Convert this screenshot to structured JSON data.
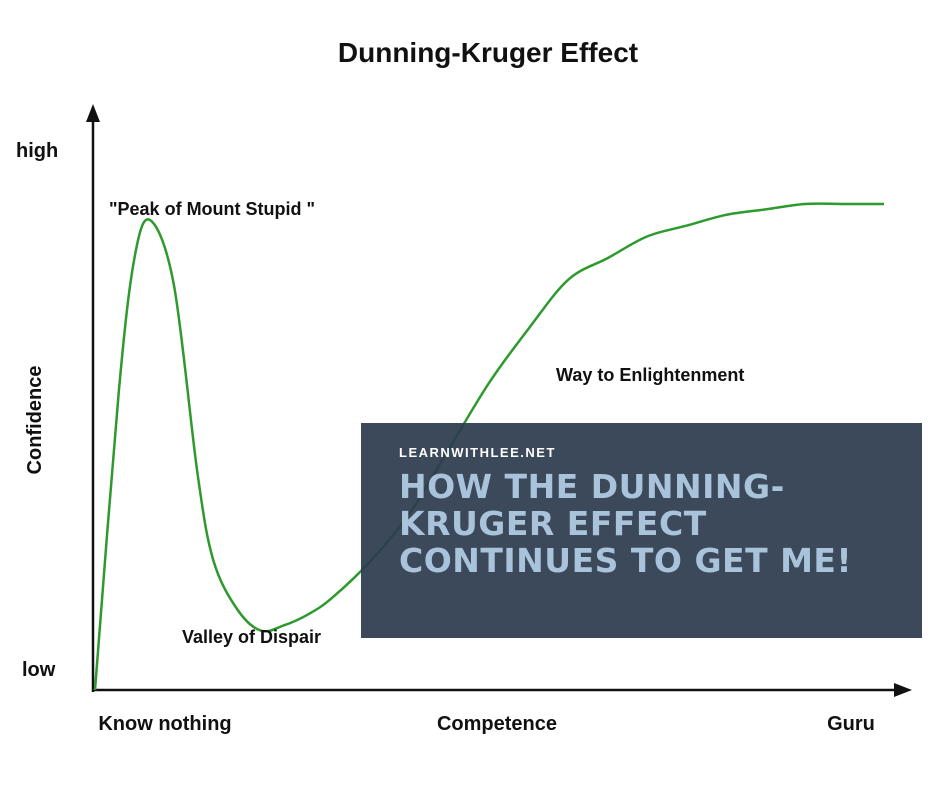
{
  "chart_data": {
    "type": "line",
    "title": "Dunning-Kruger Effect",
    "xlabel": "",
    "ylabel": "Confidence",
    "x_tick_labels": [
      "Know nothing",
      "Competence",
      "Guru"
    ],
    "y_tick_labels": [
      "low",
      "high"
    ],
    "xlim": [
      0,
      100
    ],
    "ylim": [
      0,
      100
    ],
    "grid": false,
    "legend": "none",
    "line_color": "#2e9a2e",
    "series": [
      {
        "x": [
          0,
          3,
          5,
          7,
          10,
          13,
          15,
          18,
          21,
          24,
          27,
          30,
          35,
          40,
          45,
          50,
          55,
          60,
          65,
          70,
          75,
          80,
          85,
          90,
          95,
          100
        ],
        "values": [
          0,
          55,
          80,
          87,
          75,
          40,
          24,
          15,
          11,
          12,
          14,
          17,
          24,
          33,
          45,
          57,
          67,
          76,
          80,
          84,
          86,
          88,
          89,
          90,
          90,
          90
        ]
      }
    ],
    "annotations": [
      {
        "text": "\"Peak of Mount Stupid \"",
        "x": 6,
        "y": 95
      },
      {
        "text": "Way to Enlightenment",
        "x": 58,
        "y": 64
      },
      {
        "text": "Valley of Dispair",
        "x": 11,
        "y": 6
      }
    ]
  },
  "overlay": {
    "site": "LEARNWITHLEE.NET",
    "headline": "HOW THE DUNNING-KRUGER EFFECT CONTINUES TO GET ME!",
    "background": "#2c3b4d",
    "headline_color": "#a9c3db"
  }
}
